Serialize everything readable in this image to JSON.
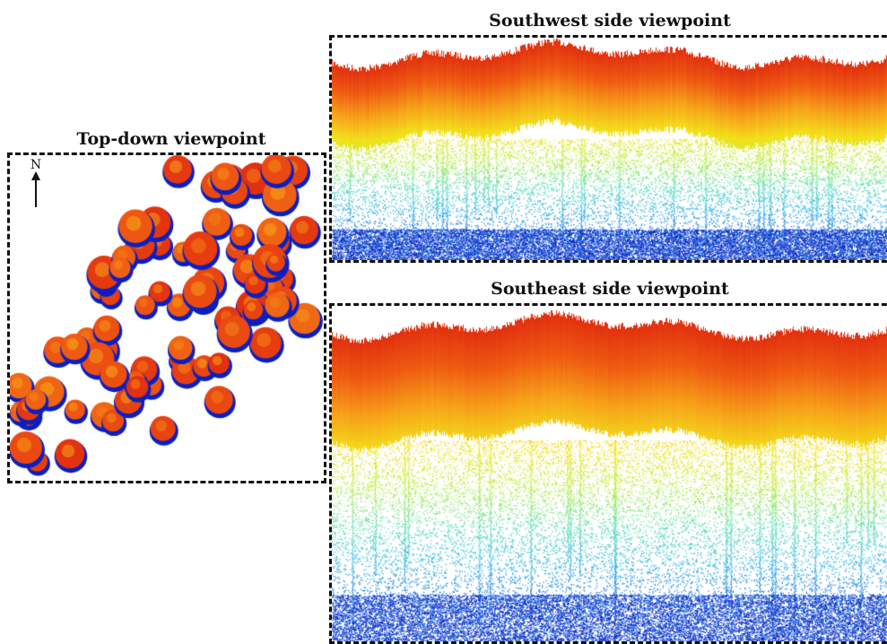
{
  "panels": {
    "top_down": {
      "title": "Top-down viewpoint",
      "north_label": "N"
    },
    "southwest": {
      "title": "Southwest side viewpoint"
    },
    "southeast": {
      "title": "Southeast side viewpoint"
    }
  },
  "colors": {
    "frame_border": "#111111",
    "colormap": [
      "#0a1fc0",
      "#1e6be0",
      "#2fb4e6",
      "#5fe0b0",
      "#b8ec3a",
      "#f3e21b",
      "#f6a11a",
      "#ef5a12",
      "#e2300f"
    ]
  }
}
